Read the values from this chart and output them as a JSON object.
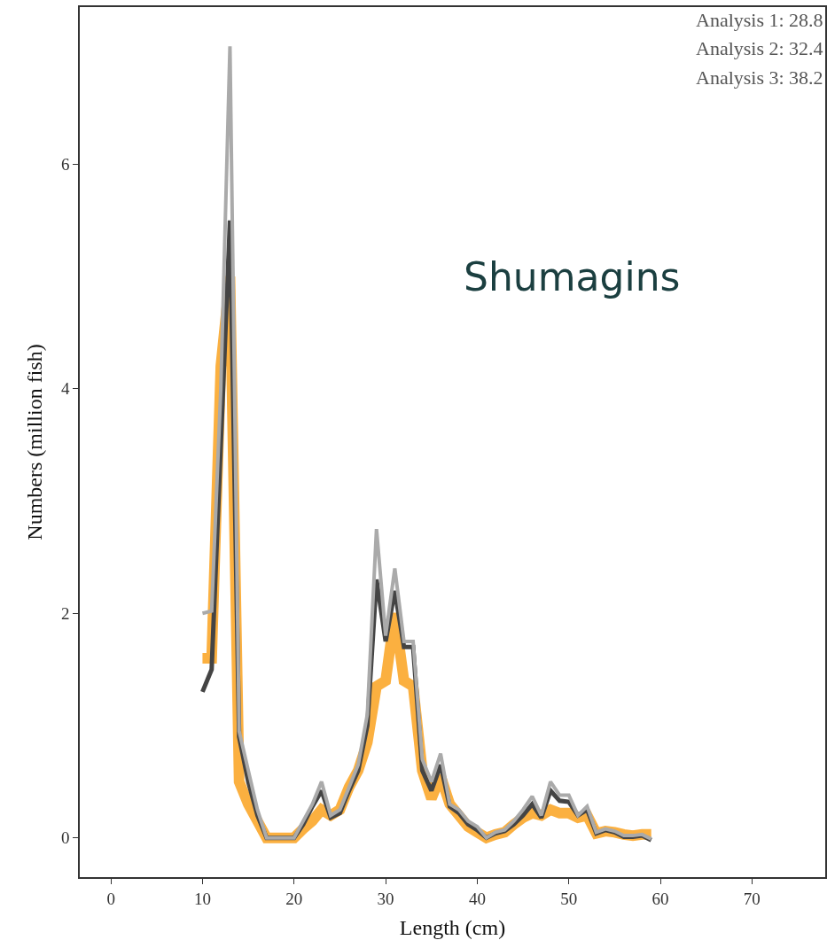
{
  "chart_data": {
    "type": "line",
    "xlabel": "Length (cm)",
    "ylabel": "Numbers (million fish)",
    "x": [
      10,
      11,
      12,
      13,
      14,
      15,
      16,
      17,
      18,
      19,
      20,
      21,
      22,
      23,
      24,
      25,
      26,
      27,
      28,
      29,
      30,
      31,
      32,
      33,
      34,
      35,
      36,
      37,
      38,
      39,
      40,
      41,
      42,
      43,
      44,
      45,
      46,
      47,
      48,
      49,
      50,
      51,
      52,
      53,
      54,
      55,
      56,
      57,
      58,
      59
    ],
    "series": [
      {
        "color": "#fbb040",
        "values": [
          1.6,
          1.6,
          4.2,
          5.0,
          0.5,
          0.3,
          0.15,
          0.0,
          0.0,
          0.0,
          0.0,
          0.08,
          0.15,
          0.25,
          0.2,
          0.25,
          0.45,
          0.6,
          0.85,
          1.35,
          1.4,
          2.0,
          1.4,
          1.35,
          0.6,
          0.35,
          0.55,
          0.3,
          0.2,
          0.1,
          0.05,
          0.0,
          0.03,
          0.05,
          0.12,
          0.18,
          0.22,
          0.2,
          0.25,
          0.22,
          0.22,
          0.18,
          0.2,
          0.04,
          0.06,
          0.05,
          0.03,
          0.02,
          0.03,
          0.03
        ]
      },
      {
        "color": "#444444",
        "values": [
          1.3,
          1.5,
          3.5,
          5.5,
          0.9,
          0.5,
          0.2,
          0.0,
          0.0,
          0.0,
          0.0,
          0.12,
          0.28,
          0.42,
          0.18,
          0.22,
          0.42,
          0.6,
          1.0,
          2.3,
          1.75,
          2.2,
          1.7,
          1.7,
          0.6,
          0.42,
          0.65,
          0.28,
          0.22,
          0.12,
          0.07,
          0.0,
          0.04,
          0.06,
          0.12,
          0.2,
          0.3,
          0.18,
          0.42,
          0.33,
          0.32,
          0.2,
          0.25,
          0.04,
          0.07,
          0.05,
          0.01,
          0.01,
          0.02,
          -0.02
        ]
      },
      {
        "color": "#aaaaaa",
        "values": [
          2.0,
          2.02,
          4.0,
          7.05,
          0.95,
          0.6,
          0.25,
          0.0,
          0.0,
          0.0,
          0.0,
          0.15,
          0.3,
          0.5,
          0.2,
          0.25,
          0.45,
          0.65,
          1.1,
          2.75,
          1.8,
          2.4,
          1.75,
          1.75,
          0.7,
          0.5,
          0.75,
          0.3,
          0.25,
          0.15,
          0.1,
          0.0,
          0.05,
          0.07,
          0.15,
          0.25,
          0.37,
          0.2,
          0.5,
          0.38,
          0.38,
          0.2,
          0.28,
          0.05,
          0.08,
          0.06,
          0.02,
          0.02,
          0.03,
          -0.01
        ]
      }
    ],
    "xlim": [
      -3.4,
      78
    ],
    "ylim": [
      -0.35,
      7.4
    ],
    "xticks": [
      0,
      10,
      20,
      30,
      40,
      50,
      60,
      70
    ],
    "yticks": [
      0,
      2,
      4,
      6
    ],
    "marker": "none",
    "line_style": "solid",
    "annotations": [
      "Analysis 1: 28.8",
      "Analysis 2: 32.4",
      "Analysis 3: 38.2",
      "Shumagins"
    ]
  }
}
